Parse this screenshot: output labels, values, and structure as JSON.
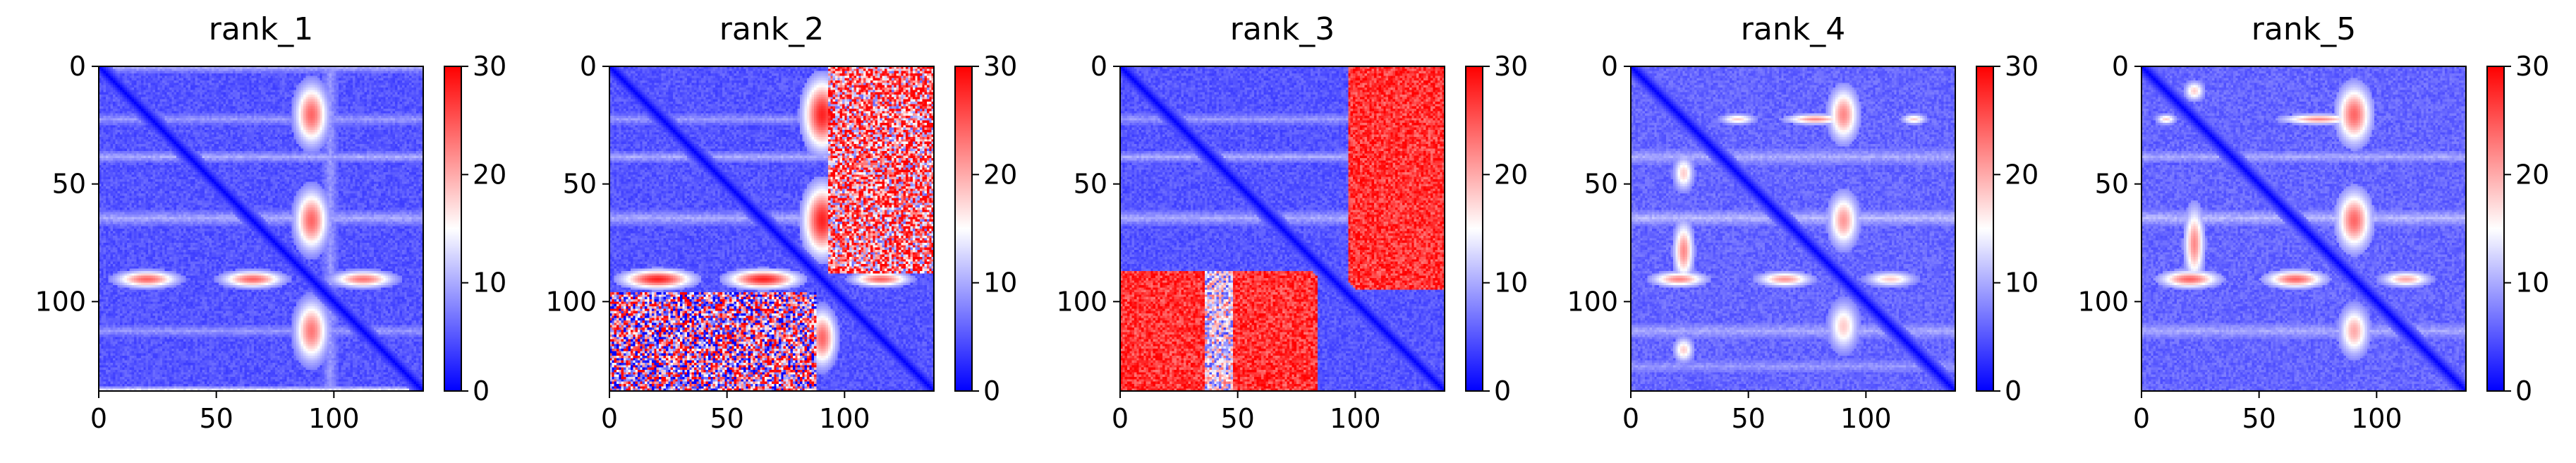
{
  "figure": {
    "background": "#ffffff"
  },
  "chart_data": [
    {
      "type": "heatmap",
      "title": "rank_1",
      "matrix_size": 138,
      "xlim": [
        0,
        138
      ],
      "ylim": [
        138,
        0
      ],
      "x_ticks": [
        0,
        50,
        100
      ],
      "y_ticks": [
        0,
        50,
        100
      ],
      "colorbar": {
        "range": [
          0,
          30
        ],
        "ticks": [
          0,
          10,
          20,
          30
        ],
        "colormap": "bwr",
        "low": "#0000ff",
        "mid": "#ffffff",
        "high": "#ff0000"
      },
      "base_value": 5,
      "diagonal_value": 0,
      "bands": [
        {
          "axis": "row",
          "at": 0,
          "width": 2,
          "value": 10
        },
        {
          "axis": "row",
          "at": 22,
          "width": 2,
          "value": 9
        },
        {
          "axis": "row",
          "at": 38,
          "width": 2,
          "value": 10
        },
        {
          "axis": "row",
          "at": 64,
          "width": 3,
          "value": 10
        },
        {
          "axis": "row",
          "at": 112,
          "width": 2,
          "value": 9
        },
        {
          "axis": "row",
          "at": 137,
          "width": 1,
          "value": 13
        },
        {
          "axis": "col",
          "at": 98,
          "width": 3,
          "value": 9
        }
      ],
      "blobs": [
        {
          "row": 90,
          "col": 20,
          "height": 7,
          "width": 26,
          "value": 24
        },
        {
          "row": 90,
          "col": 65,
          "height": 7,
          "width": 26,
          "value": 24
        },
        {
          "row": 90,
          "col": 112,
          "height": 7,
          "width": 26,
          "value": 23
        }
      ],
      "blocks": []
    },
    {
      "type": "heatmap",
      "title": "rank_2",
      "matrix_size": 138,
      "xlim": [
        0,
        138
      ],
      "ylim": [
        138,
        0
      ],
      "x_ticks": [
        0,
        50,
        100
      ],
      "y_ticks": [
        0,
        50,
        100
      ],
      "colorbar": {
        "range": [
          0,
          30
        ],
        "ticks": [
          0,
          10,
          20,
          30
        ],
        "colormap": "bwr",
        "low": "#0000ff",
        "mid": "#ffffff",
        "high": "#ff0000"
      },
      "base_value": 5,
      "diagonal_value": 0,
      "bands": [
        {
          "axis": "row",
          "at": 22,
          "width": 2,
          "value": 9
        },
        {
          "axis": "row",
          "at": 38,
          "width": 2,
          "value": 10
        },
        {
          "axis": "row",
          "at": 64,
          "width": 3,
          "value": 10
        }
      ],
      "blobs": [
        {
          "row": 90,
          "col": 20,
          "height": 8,
          "width": 30,
          "value": 28
        },
        {
          "row": 90,
          "col": 65,
          "height": 8,
          "width": 30,
          "value": 28
        },
        {
          "row": 90,
          "col": 115,
          "height": 6,
          "width": 24,
          "value": 24
        }
      ],
      "blocks": [
        {
          "rows": [
            0,
            88
          ],
          "cols": [
            93,
            138
          ],
          "value": 22,
          "noise": 16
        },
        {
          "rows": [
            96,
            138
          ],
          "cols": [
            0,
            88
          ],
          "value": 16,
          "noise": 20
        }
      ]
    },
    {
      "type": "heatmap",
      "title": "rank_3",
      "matrix_size": 138,
      "xlim": [
        0,
        138
      ],
      "ylim": [
        138,
        0
      ],
      "x_ticks": [
        0,
        50,
        100
      ],
      "y_ticks": [
        0,
        50,
        100
      ],
      "colorbar": {
        "range": [
          0,
          30
        ],
        "ticks": [
          0,
          10,
          20,
          30
        ],
        "colormap": "bwr",
        "low": "#0000ff",
        "mid": "#ffffff",
        "high": "#ff0000"
      },
      "base_value": 5,
      "diagonal_value": 0,
      "bands": [
        {
          "axis": "row",
          "at": 22,
          "width": 2,
          "value": 9
        },
        {
          "axis": "row",
          "at": 38,
          "width": 2,
          "value": 10
        },
        {
          "axis": "row",
          "at": 64,
          "width": 3,
          "value": 10
        }
      ],
      "blobs": [],
      "blocks": [
        {
          "rows": [
            0,
            95
          ],
          "cols": [
            97,
            138
          ],
          "value": 27,
          "noise": 4
        },
        {
          "rows": [
            87,
            138
          ],
          "cols": [
            0,
            36
          ],
          "value": 27,
          "noise": 4
        },
        {
          "rows": [
            87,
            138
          ],
          "cols": [
            48,
            84
          ],
          "value": 27,
          "noise": 4
        },
        {
          "rows": [
            87,
            138
          ],
          "cols": [
            36,
            48
          ],
          "value": 14,
          "noise": 10
        }
      ]
    },
    {
      "type": "heatmap",
      "title": "rank_4",
      "matrix_size": 138,
      "xlim": [
        0,
        138
      ],
      "ylim": [
        138,
        0
      ],
      "x_ticks": [
        0,
        50,
        100
      ],
      "y_ticks": [
        0,
        50,
        100
      ],
      "colorbar": {
        "range": [
          0,
          30
        ],
        "ticks": [
          0,
          10,
          20,
          30
        ],
        "colormap": "bwr",
        "low": "#0000ff",
        "mid": "#ffffff",
        "high": "#ff0000"
      },
      "base_value": 6,
      "diagonal_value": 0,
      "bands": [
        {
          "axis": "row",
          "at": 38,
          "width": 3,
          "value": 10
        },
        {
          "axis": "row",
          "at": 64,
          "width": 3,
          "value": 11
        },
        {
          "axis": "row",
          "at": 112,
          "width": 3,
          "value": 10
        },
        {
          "axis": "row",
          "at": 127,
          "width": 2,
          "value": 9
        }
      ],
      "blobs": [
        {
          "row": 22,
          "col": 45,
          "height": 4,
          "width": 14,
          "value": 18
        },
        {
          "row": 22,
          "col": 78,
          "height": 4,
          "width": 24,
          "value": 22
        },
        {
          "row": 22,
          "col": 120,
          "height": 4,
          "width": 10,
          "value": 18
        },
        {
          "row": 90,
          "col": 20,
          "height": 6,
          "width": 22,
          "value": 22
        },
        {
          "row": 90,
          "col": 65,
          "height": 6,
          "width": 22,
          "value": 21
        },
        {
          "row": 90,
          "col": 110,
          "height": 6,
          "width": 20,
          "value": 18
        }
      ],
      "blocks": []
    },
    {
      "type": "heatmap",
      "title": "rank_5",
      "matrix_size": 138,
      "xlim": [
        0,
        138
      ],
      "ylim": [
        138,
        0
      ],
      "x_ticks": [
        0,
        50,
        100
      ],
      "y_ticks": [
        0,
        50,
        100
      ],
      "colorbar": {
        "range": [
          0,
          30
        ],
        "ticks": [
          0,
          10,
          20,
          30
        ],
        "colormap": "bwr",
        "low": "#0000ff",
        "mid": "#ffffff",
        "high": "#ff0000"
      },
      "base_value": 6,
      "diagonal_value": 0,
      "bands": [
        {
          "axis": "row",
          "at": 38,
          "width": 2,
          "value": 10
        },
        {
          "axis": "row",
          "at": 64,
          "width": 3,
          "value": 11
        },
        {
          "axis": "row",
          "at": 112,
          "width": 3,
          "value": 10
        }
      ],
      "blobs": [
        {
          "row": 22,
          "col": 10,
          "height": 4,
          "width": 8,
          "value": 18
        },
        {
          "row": 22,
          "col": 75,
          "height": 4,
          "width": 30,
          "value": 22
        },
        {
          "row": 90,
          "col": 20,
          "height": 7,
          "width": 24,
          "value": 24
        },
        {
          "row": 90,
          "col": 65,
          "height": 7,
          "width": 24,
          "value": 24
        },
        {
          "row": 90,
          "col": 112,
          "height": 6,
          "width": 20,
          "value": 20
        }
      ],
      "blocks": []
    }
  ]
}
